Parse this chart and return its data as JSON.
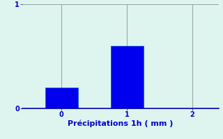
{
  "categories": [
    0,
    1
  ],
  "values": [
    0.2,
    0.6
  ],
  "bar_color": "#0000ee",
  "bar_edge_color": "#0055cc",
  "background_color": "#ddf5ee",
  "xlabel": "Précipitations 1h ( mm )",
  "xlabel_color": "#0000cc",
  "xlabel_fontsize": 8,
  "tick_color": "#0000cc",
  "tick_fontsize": 7,
  "ylim": [
    0,
    1.0
  ],
  "xlim": [
    -0.6,
    2.4
  ],
  "yticks": [
    0,
    1
  ],
  "xticks": [
    0,
    1,
    2
  ],
  "grid_color": "#99aaa0",
  "bar_width": 0.5,
  "axis_color": "#0000aa",
  "axis_linewidth": 1.2
}
